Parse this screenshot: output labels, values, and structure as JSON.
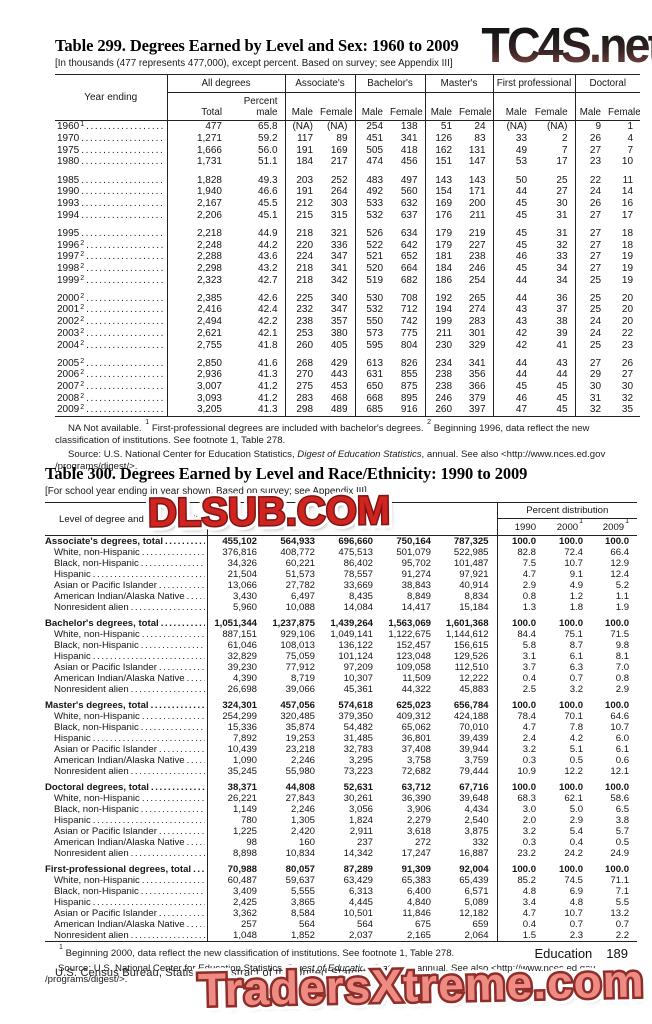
{
  "watermarks": {
    "top": "TC4S.net",
    "middle": "DLSUB.COM",
    "bottom": "TradersXtreme.com"
  },
  "colors": {
    "watermark_red": "#cf2420",
    "watermark_salmon": "#ee8c83",
    "watermark_dark_red": "#8e2d2a"
  },
  "table299": {
    "title": "Table 299. Degrees Earned by Level and Sex: 1960 to 2009",
    "subtitle": "[In thousands (477 represents 477,000), except percent. Based on survey; see Appendix III]",
    "row_header": "Year ending",
    "groups": [
      {
        "label": "All degrees",
        "cols": [
          "Total",
          "Percent male"
        ]
      },
      {
        "label": "Associate's",
        "cols": [
          "Male",
          "Female"
        ]
      },
      {
        "label": "Bachelor's",
        "cols": [
          "Male",
          "Female"
        ]
      },
      {
        "label": "Master's",
        "cols": [
          "Male",
          "Female"
        ]
      },
      {
        "label": "First professional",
        "cols": [
          "Male",
          "Female"
        ]
      },
      {
        "label": "Doctoral",
        "cols": [
          "Male",
          "Female"
        ]
      }
    ],
    "rows": [
      {
        "year": "1960",
        "sup": "1",
        "values": [
          "477",
          "65.8",
          "(NA)",
          "(NA)",
          "254",
          "138",
          "51",
          "24",
          "(NA)",
          "(NA)",
          "9",
          "1"
        ]
      },
      {
        "year": "1970",
        "values": [
          "1,271",
          "59.2",
          "117",
          "89",
          "451",
          "341",
          "126",
          "83",
          "33",
          "2",
          "26",
          "4"
        ]
      },
      {
        "year": "1975",
        "values": [
          "1,666",
          "56.0",
          "191",
          "169",
          "505",
          "418",
          "162",
          "131",
          "49",
          "7",
          "27",
          "7"
        ]
      },
      {
        "year": "1980",
        "values": [
          "1,731",
          "51.1",
          "184",
          "217",
          "474",
          "456",
          "151",
          "147",
          "53",
          "17",
          "23",
          "10"
        ]
      },
      {
        "gap": true
      },
      {
        "year": "1985",
        "values": [
          "1,828",
          "49.3",
          "203",
          "252",
          "483",
          "497",
          "143",
          "143",
          "50",
          "25",
          "22",
          "11"
        ]
      },
      {
        "year": "1990",
        "values": [
          "1,940",
          "46.6",
          "191",
          "264",
          "492",
          "560",
          "154",
          "171",
          "44",
          "27",
          "24",
          "14"
        ]
      },
      {
        "year": "1993",
        "values": [
          "2,167",
          "45.5",
          "212",
          "303",
          "533",
          "632",
          "169",
          "200",
          "45",
          "30",
          "26",
          "16"
        ]
      },
      {
        "year": "1994",
        "values": [
          "2,206",
          "45.1",
          "215",
          "315",
          "532",
          "637",
          "176",
          "211",
          "45",
          "31",
          "27",
          "17"
        ]
      },
      {
        "gap": true
      },
      {
        "year": "1995",
        "values": [
          "2,218",
          "44.9",
          "218",
          "321",
          "526",
          "634",
          "179",
          "219",
          "45",
          "31",
          "27",
          "18"
        ]
      },
      {
        "year": "1996",
        "sup": "2",
        "values": [
          "2,248",
          "44.2",
          "220",
          "336",
          "522",
          "642",
          "179",
          "227",
          "45",
          "32",
          "27",
          "18"
        ]
      },
      {
        "year": "1997",
        "sup": "2",
        "values": [
          "2,288",
          "43.6",
          "224",
          "347",
          "521",
          "652",
          "181",
          "238",
          "46",
          "33",
          "27",
          "19"
        ]
      },
      {
        "year": "1998",
        "sup": "2",
        "values": [
          "2,298",
          "43.2",
          "218",
          "341",
          "520",
          "664",
          "184",
          "246",
          "45",
          "34",
          "27",
          "19"
        ]
      },
      {
        "year": "1999",
        "sup": "2",
        "values": [
          "2,323",
          "42.7",
          "218",
          "342",
          "519",
          "682",
          "186",
          "254",
          "44",
          "34",
          "25",
          "19"
        ]
      },
      {
        "gap": true
      },
      {
        "year": "2000",
        "sup": "2",
        "values": [
          "2,385",
          "42.6",
          "225",
          "340",
          "530",
          "708",
          "192",
          "265",
          "44",
          "36",
          "25",
          "20"
        ]
      },
      {
        "year": "2001",
        "sup": "2",
        "values": [
          "2,416",
          "42.4",
          "232",
          "347",
          "532",
          "712",
          "194",
          "274",
          "43",
          "37",
          "25",
          "20"
        ]
      },
      {
        "year": "2002",
        "sup": "2",
        "values": [
          "2,494",
          "42.2",
          "238",
          "357",
          "550",
          "742",
          "199",
          "283",
          "43",
          "38",
          "24",
          "20"
        ]
      },
      {
        "year": "2003",
        "sup": "2",
        "values": [
          "2,621",
          "42.1",
          "253",
          "380",
          "573",
          "775",
          "211",
          "301",
          "42",
          "39",
          "24",
          "22"
        ]
      },
      {
        "year": "2004",
        "sup": "2",
        "values": [
          "2,755",
          "41.8",
          "260",
          "405",
          "595",
          "804",
          "230",
          "329",
          "42",
          "41",
          "25",
          "23"
        ]
      },
      {
        "gap": true
      },
      {
        "year": "2005",
        "sup": "2",
        "values": [
          "2,850",
          "41.6",
          "268",
          "429",
          "613",
          "826",
          "234",
          "341",
          "44",
          "43",
          "27",
          "26"
        ]
      },
      {
        "year": "2006",
        "sup": "2",
        "values": [
          "2,936",
          "41.3",
          "270",
          "443",
          "631",
          "855",
          "238",
          "356",
          "44",
          "44",
          "29",
          "27"
        ]
      },
      {
        "year": "2007",
        "sup": "2",
        "values": [
          "3,007",
          "41.2",
          "275",
          "453",
          "650",
          "875",
          "238",
          "366",
          "45",
          "45",
          "30",
          "30"
        ]
      },
      {
        "year": "2008",
        "sup": "2",
        "values": [
          "3,093",
          "41.2",
          "283",
          "468",
          "668",
          "895",
          "246",
          "379",
          "46",
          "45",
          "31",
          "32"
        ]
      },
      {
        "year": "2009",
        "sup": "2",
        "values": [
          "3,205",
          "41.3",
          "298",
          "489",
          "685",
          "916",
          "260",
          "397",
          "47",
          "45",
          "32",
          "35"
        ]
      }
    ],
    "footnote_parts": [
      {
        "t": "NA Not available. "
      },
      {
        "sup": "1"
      },
      {
        "t": " First-professional degrees are included with bachelor's degrees. "
      },
      {
        "sup": "2"
      },
      {
        "t": " Beginning 1996, data reflect the new classification of institutions. See footnote 1, Table 278."
      }
    ],
    "source_parts": [
      {
        "t": "Source: U.S. National Center for Education Statistics, "
      },
      {
        "i": "Digest of Education Statistics"
      },
      {
        "t": ", annual. See also <http://www.nces.ed.gov"
      },
      {
        "br": true
      },
      {
        "t": "/programs/digest/>."
      }
    ]
  },
  "table300": {
    "title": "Table 300. Degrees Earned by Level and Race/Ethnicity: 1990 to 2009",
    "subtitle": "[For school year ending in year shown. Based on survey; see Appendix III]",
    "row_header": "Level of degree and race/ethnicity",
    "percent_group_label": "Percent distribution",
    "percent_years": [
      {
        "label": "1990"
      },
      {
        "label": "2000",
        "sup": "1"
      },
      {
        "label": "2009",
        "sup": "1"
      }
    ],
    "sections": [
      {
        "label": "Associate's degrees, total",
        "values": [
          "455,102",
          "564,933",
          "696,660",
          "750,164",
          "787,325",
          "100.0",
          "100.0",
          "100.0"
        ],
        "rows": [
          {
            "label": "White, non-Hispanic",
            "values": [
              "376,816",
              "408,772",
              "475,513",
              "501,079",
              "522,985",
              "82.8",
              "72.4",
              "66.4"
            ]
          },
          {
            "label": "Black, non-Hispanic",
            "values": [
              "34,326",
              "60,221",
              "86,402",
              "95,702",
              "101,487",
              "7.5",
              "10.7",
              "12.9"
            ]
          },
          {
            "label": "Hispanic",
            "values": [
              "21,504",
              "51,573",
              "78,557",
              "91,274",
              "97,921",
              "4.7",
              "9.1",
              "12.4"
            ]
          },
          {
            "label": "Asian or Pacific Islander",
            "values": [
              "13,066",
              "27,782",
              "33,669",
              "38,843",
              "40,914",
              "2.9",
              "4.9",
              "5.2"
            ]
          },
          {
            "label": "American Indian/Alaska Native",
            "values": [
              "3,430",
              "6,497",
              "8,435",
              "8,849",
              "8,834",
              "0.8",
              "1.2",
              "1.1"
            ]
          },
          {
            "label": "Nonresident alien",
            "values": [
              "5,960",
              "10,088",
              "14,084",
              "14,417",
              "15,184",
              "1.3",
              "1.8",
              "1.9"
            ]
          }
        ]
      },
      {
        "label": "Bachelor's degrees, total",
        "values": [
          "1,051,344",
          "1,237,875",
          "1,439,264",
          "1,563,069",
          "1,601,368",
          "100.0",
          "100.0",
          "100.0"
        ],
        "rows": [
          {
            "label": "White, non-Hispanic",
            "values": [
              "887,151",
              "929,106",
              "1,049,141",
              "1,122,675",
              "1,144,612",
              "84.4",
              "75.1",
              "71.5"
            ]
          },
          {
            "label": "Black, non-Hispanic",
            "values": [
              "61,046",
              "108,013",
              "136,122",
              "152,457",
              "156,615",
              "5.8",
              "8.7",
              "9.8"
            ]
          },
          {
            "label": "Hispanic",
            "values": [
              "32,829",
              "75,059",
              "101,124",
              "123,048",
              "129,526",
              "3.1",
              "6.1",
              "8.1"
            ]
          },
          {
            "label": "Asian or Pacific Islander",
            "values": [
              "39,230",
              "77,912",
              "97,209",
              "109,058",
              "112,510",
              "3.7",
              "6.3",
              "7.0"
            ]
          },
          {
            "label": "American Indian/Alaska Native",
            "values": [
              "4,390",
              "8,719",
              "10,307",
              "11,509",
              "12,222",
              "0.4",
              "0.7",
              "0.8"
            ]
          },
          {
            "label": "Nonresident alien",
            "values": [
              "26,698",
              "39,066",
              "45,361",
              "44,322",
              "45,883",
              "2.5",
              "3.2",
              "2.9"
            ]
          }
        ]
      },
      {
        "label": "Master's degrees, total",
        "values": [
          "324,301",
          "457,056",
          "574,618",
          "625,023",
          "656,784",
          "100.0",
          "100.0",
          "100.0"
        ],
        "rows": [
          {
            "label": "White, non-Hispanic",
            "values": [
              "254,299",
              "320,485",
              "379,350",
              "409,312",
              "424,188",
              "78.4",
              "70.1",
              "64.6"
            ]
          },
          {
            "label": "Black, non-Hispanic",
            "values": [
              "15,336",
              "35,874",
              "54,482",
              "65,062",
              "70,010",
              "4.7",
              "7.8",
              "10.7"
            ]
          },
          {
            "label": "Hispanic",
            "values": [
              "7,892",
              "19,253",
              "31,485",
              "36,801",
              "39,439",
              "2.4",
              "4.2",
              "6.0"
            ]
          },
          {
            "label": "Asian or Pacific Islander",
            "values": [
              "10,439",
              "23,218",
              "32,783",
              "37,408",
              "39,944",
              "3.2",
              "5.1",
              "6.1"
            ]
          },
          {
            "label": "American Indian/Alaska Native",
            "values": [
              "1,090",
              "2,246",
              "3,295",
              "3,758",
              "3,759",
              "0.3",
              "0.5",
              "0.6"
            ]
          },
          {
            "label": "Nonresident alien",
            "values": [
              "35,245",
              "55,980",
              "73,223",
              "72,682",
              "79,444",
              "10.9",
              "12.2",
              "12.1"
            ]
          }
        ]
      },
      {
        "label": "Doctoral degrees, total",
        "values": [
          "38,371",
          "44,808",
          "52,631",
          "63,712",
          "67,716",
          "100.0",
          "100.0",
          "100.0"
        ],
        "rows": [
          {
            "label": "White, non-Hispanic",
            "values": [
              "26,221",
              "27,843",
              "30,261",
              "36,390",
              "39,648",
              "68.3",
              "62.1",
              "58.6"
            ]
          },
          {
            "label": "Black, non-Hispanic",
            "values": [
              "1,149",
              "2,246",
              "3,056",
              "3,906",
              "4,434",
              "3.0",
              "5.0",
              "6.5"
            ]
          },
          {
            "label": "Hispanic",
            "values": [
              "780",
              "1,305",
              "1,824",
              "2,279",
              "2,540",
              "2.0",
              "2.9",
              "3.8"
            ]
          },
          {
            "label": "Asian or Pacific Islander",
            "values": [
              "1,225",
              "2,420",
              "2,911",
              "3,618",
              "3,875",
              "3.2",
              "5.4",
              "5.7"
            ]
          },
          {
            "label": "American Indian/Alaska Native",
            "values": [
              "98",
              "160",
              "237",
              "272",
              "332",
              "0.3",
              "0.4",
              "0.5"
            ]
          },
          {
            "label": "Nonresident alien",
            "values": [
              "8,898",
              "10,834",
              "14,342",
              "17,247",
              "16,887",
              "23.2",
              "24.2",
              "24.9"
            ]
          }
        ]
      },
      {
        "label": "First-professional degrees, total",
        "values": [
          "70,988",
          "80,057",
          "87,289",
          "91,309",
          "92,004",
          "100.0",
          "100.0",
          "100.0"
        ],
        "rows": [
          {
            "label": "White, non-Hispanic",
            "values": [
              "60,487",
              "59,637",
              "63,429",
              "65,383",
              "65,439",
              "85.2",
              "74.5",
              "71.1"
            ]
          },
          {
            "label": "Black, non-Hispanic",
            "values": [
              "3,409",
              "5,555",
              "6,313",
              "6,400",
              "6,571",
              "4.8",
              "6.9",
              "7.1"
            ]
          },
          {
            "label": "Hispanic",
            "values": [
              "2,425",
              "3,865",
              "4,445",
              "4,840",
              "5,089",
              "3.4",
              "4.8",
              "5.5"
            ]
          },
          {
            "label": "Asian or Pacific Islander",
            "values": [
              "3,362",
              "8,584",
              "10,501",
              "11,846",
              "12,182",
              "4.7",
              "10.7",
              "13.2"
            ]
          },
          {
            "label": "American Indian/Alaska Native",
            "values": [
              "257",
              "564",
              "564",
              "675",
              "659",
              "0.4",
              "0.7",
              "0.7"
            ]
          },
          {
            "label": "Nonresident alien",
            "values": [
              "1,048",
              "1,852",
              "2,037",
              "2,165",
              "2,064",
              "1.5",
              "2.3",
              "2.2"
            ]
          }
        ]
      }
    ],
    "footnote_parts": [
      {
        "sup": "1"
      },
      {
        "t": " Beginning 2000, data reflect the new classification of institutions. See footnote 1, Table 278."
      }
    ],
    "source_parts": [
      {
        "t": "Source: U.S. National Center for Education Statistics, "
      },
      {
        "i": "Digest of Education Statistics"
      },
      {
        "t": ", annual. See also <http://www.nces.ed.gov"
      },
      {
        "br": true
      },
      {
        "t": "/programs/digest/>."
      }
    ]
  },
  "footer": {
    "section": "Education",
    "page": "189",
    "credit": "U.S. Census Bureau, Statistical Abstract of the United States: 2012"
  }
}
